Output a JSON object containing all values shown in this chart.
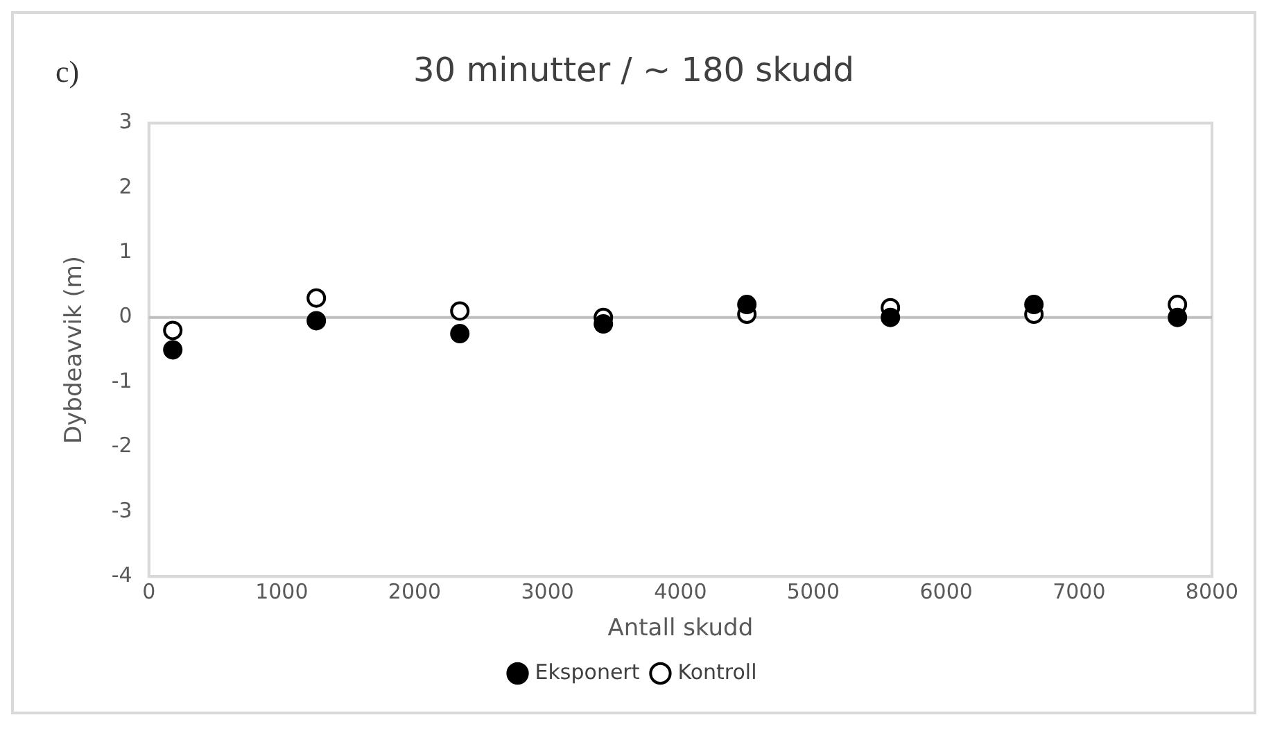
{
  "chart_data": {
    "type": "scatter",
    "title": "30 minutter / ~ 180 skudd",
    "xlabel": "Antall skudd",
    "ylabel": "Dybdeavvik (m)",
    "annotations": [
      "c)"
    ],
    "x": [
      180,
      1260,
      2340,
      3420,
      4500,
      5580,
      6660,
      7740
    ],
    "series": [
      {
        "name": "Eksponert",
        "color": "#000000",
        "values": [
          -0.5,
          -0.05,
          -0.25,
          -0.1,
          0.2,
          0,
          0.2,
          0
        ],
        "marker": "circle"
      },
      {
        "name": "Kontroll",
        "color": "#ffffff",
        "values": [
          -0.2,
          0.3,
          0.1,
          0,
          0.05,
          0.15,
          0.05,
          0.2
        ],
        "marker": "circle"
      }
    ],
    "xlim": [
      0,
      8000
    ],
    "xticks": [
      0,
      1000,
      2000,
      3000,
      4000,
      5000,
      6000,
      7000,
      8000
    ],
    "ylim": [
      -4,
      3
    ],
    "yticks": [
      -4,
      -3,
      -2,
      -1,
      0,
      1,
      2,
      3
    ],
    "ref_lines": [
      {
        "axis": "y",
        "value": 0,
        "color": "#bfbfbf"
      }
    ],
    "grid": false,
    "legend": "bottom"
  }
}
